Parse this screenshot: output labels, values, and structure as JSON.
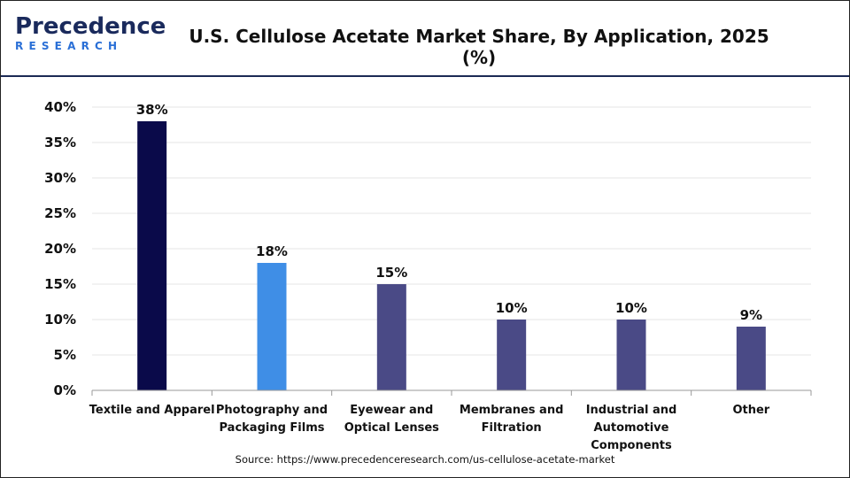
{
  "header": {
    "logo_top": "Precedence",
    "logo_bottom": "RESEARCH",
    "title": "U.S. Cellulose Acetate Market Share, By Application, 2025 (%)"
  },
  "footer": {
    "source": "Source: https://www.precedenceresearch.com/us-cellulose-acetate-market"
  },
  "colors": {
    "primary": "#0a0a4a",
    "highlight": "#3f8ee6",
    "default": "#4a4a86",
    "grid": "#e6e6e6",
    "axis": "#999999"
  },
  "chart_data": {
    "type": "bar",
    "title": "U.S. Cellulose Acetate Market Share, By Application, 2025 (%)",
    "categories": [
      [
        "Textile and Apparel"
      ],
      [
        "Photography and",
        "Packaging Films"
      ],
      [
        "Eyewear and",
        "Optical Lenses"
      ],
      [
        "Membranes and",
        "Filtration"
      ],
      [
        "Industrial and",
        "Automotive",
        "Components"
      ],
      [
        "Other"
      ]
    ],
    "values": [
      38,
      18,
      15,
      10,
      10,
      9
    ],
    "value_labels": [
      "38%",
      "18%",
      "15%",
      "10%",
      "10%",
      "9%"
    ],
    "bar_colors": [
      "#0a0a4a",
      "#3f8ee6",
      "#4a4a86",
      "#4a4a86",
      "#4a4a86",
      "#4a4a86"
    ],
    "ylim": [
      0,
      40
    ],
    "yticks": [
      0,
      5,
      10,
      15,
      20,
      25,
      30,
      35,
      40
    ],
    "ytick_labels": [
      "0%",
      "5%",
      "10%",
      "15%",
      "20%",
      "25%",
      "30%",
      "35%",
      "40%"
    ],
    "grid": true,
    "legend": "none"
  }
}
